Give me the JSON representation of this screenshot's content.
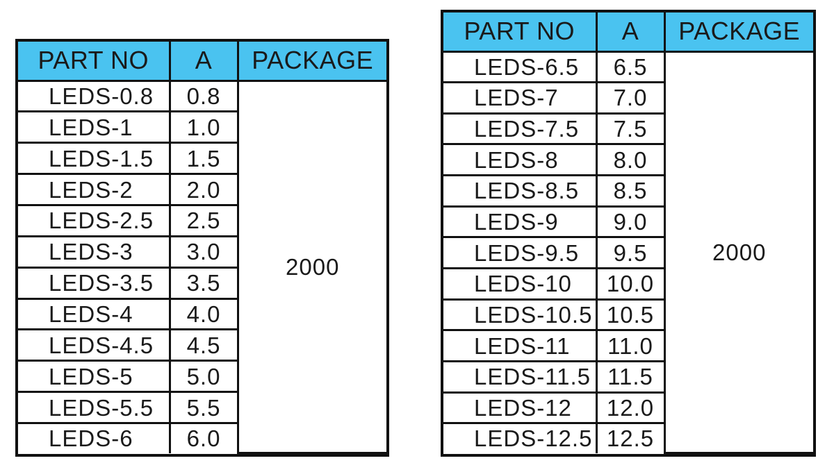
{
  "left_table": {
    "headers": [
      "PART NO",
      "A",
      "PACKAGE"
    ],
    "package": "2000",
    "rows": [
      {
        "part": "LEDS-0.8",
        "a": "0.8"
      },
      {
        "part": "LEDS-1",
        "a": "1.0"
      },
      {
        "part": "LEDS-1.5",
        "a": "1.5"
      },
      {
        "part": "LEDS-2",
        "a": "2.0"
      },
      {
        "part": "LEDS-2.5",
        "a": "2.5"
      },
      {
        "part": "LEDS-3",
        "a": "3.0"
      },
      {
        "part": "LEDS-3.5",
        "a": "3.5"
      },
      {
        "part": "LEDS-4",
        "a": "4.0"
      },
      {
        "part": "LEDS-4.5",
        "a": "4.5"
      },
      {
        "part": "LEDS-5",
        "a": "5.0"
      },
      {
        "part": "LEDS-5.5",
        "a": "5.5"
      },
      {
        "part": "LEDS-6",
        "a": "6.0"
      }
    ]
  },
  "right_table": {
    "headers": [
      "PART NO",
      "A",
      "PACKAGE"
    ],
    "package": "2000",
    "rows": [
      {
        "part": "LEDS-6.5",
        "a": "6.5"
      },
      {
        "part": "LEDS-7",
        "a": "7.0"
      },
      {
        "part": "LEDS-7.5",
        "a": "7.5"
      },
      {
        "part": "LEDS-8",
        "a": "8.0"
      },
      {
        "part": "LEDS-8.5",
        "a": "8.5"
      },
      {
        "part": "LEDS-9",
        "a": "9.0"
      },
      {
        "part": "LEDS-9.5",
        "a": "9.5"
      },
      {
        "part": "LEDS-10",
        "a": "10.0"
      },
      {
        "part": "LEDS-10.5",
        "a": "10.5"
      },
      {
        "part": "LEDS-11",
        "a": "11.0"
      },
      {
        "part": "LEDS-11.5",
        "a": "11.5"
      },
      {
        "part": "LEDS-12",
        "a": "12.0"
      },
      {
        "part": "LEDS-12.5",
        "a": "12.5"
      }
    ]
  },
  "colors": {
    "header_bg": "#4ac3f0",
    "border": "#111111"
  }
}
